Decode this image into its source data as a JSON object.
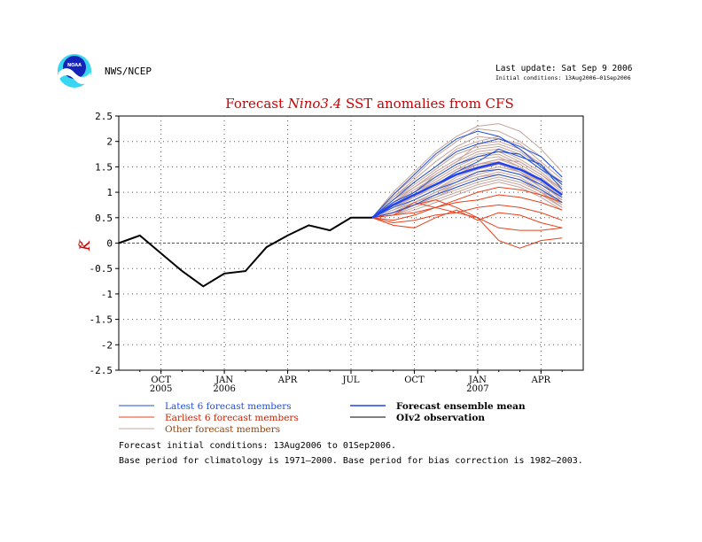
{
  "header": {
    "agency": "NWS/NCEP",
    "last_update": "Last update: Sat Sep  9 2006",
    "initial_conditions": "Initial conditions: 13Aug2006–01Sep2006",
    "logo_text": "NOAA"
  },
  "footer": {
    "line1": "Forecast initial conditions: 13Aug2006 to 01Sep2006.",
    "line2": "Base period for climatology is 1971—2000. Base period for bias correction is 1982—2003."
  },
  "colors": {
    "title": "#cc0000",
    "latest": "#1f4fd6",
    "earliest": "#e8401a",
    "other": "#c4a39a",
    "mean": "#2244ee",
    "obs": "#000000"
  },
  "chart_data": {
    "type": "line",
    "title_parts": [
      "Forecast ",
      "Nino3.4",
      " SST anomalies from CFS"
    ],
    "ylabel_unit": "K",
    "ylabel_degree": "o",
    "ylim": [
      -2.5,
      2.5
    ],
    "yticks": [
      {
        "v": 2.5,
        "label": "2.5"
      },
      {
        "v": 2,
        "label": "2"
      },
      {
        "v": 1.5,
        "label": "1.5"
      },
      {
        "v": 1,
        "label": "1"
      },
      {
        "v": 0.5,
        "label": "0.5"
      },
      {
        "v": 0,
        "label": "0"
      },
      {
        "v": -0.5,
        "label": "-0.5"
      },
      {
        "v": -1,
        "label": "-1"
      },
      {
        "v": -1.5,
        "label": "-1.5"
      },
      {
        "v": -2,
        "label": "-2"
      },
      {
        "v": -2.5,
        "label": "-2.5"
      }
    ],
    "x_range": [
      "2005-08",
      "2007-06"
    ],
    "xticks": [
      {
        "month": "2005-10",
        "label": "OCT",
        "year": "2005"
      },
      {
        "month": "2006-01",
        "label": "JAN",
        "year": "2006"
      },
      {
        "month": "2006-04",
        "label": "APR",
        "year": ""
      },
      {
        "month": "2006-07",
        "label": "JUL",
        "year": ""
      },
      {
        "month": "2006-10",
        "label": "OCT",
        "year": ""
      },
      {
        "month": "2007-01",
        "label": "JAN",
        "year": "2007"
      },
      {
        "month": "2007-04",
        "label": "APR",
        "year": ""
      }
    ],
    "grid": true,
    "legend": [
      {
        "key": "latest",
        "label": "Latest 6 forecast members"
      },
      {
        "key": "mean",
        "label": "Forecast ensemble mean"
      },
      {
        "key": "earliest",
        "label": "Earliest 6 forecast members"
      },
      {
        "key": "obs",
        "label": "OIv2 observation"
      },
      {
        "key": "other",
        "label": "Other forecast members"
      }
    ],
    "observation": {
      "x": [
        "2005-08",
        "2005-09",
        "2005-10",
        "2005-11",
        "2005-12",
        "2006-01",
        "2006-02",
        "2006-03",
        "2006-04",
        "2006-05",
        "2006-06",
        "2006-07",
        "2006-08"
      ],
      "y": [
        0.0,
        0.15,
        -0.2,
        -0.55,
        -0.85,
        -0.6,
        -0.55,
        -0.08,
        0.15,
        0.35,
        0.25,
        0.5,
        0.5
      ]
    },
    "forecast_x": [
      "2006-08",
      "2006-09",
      "2006-10",
      "2006-11",
      "2006-12",
      "2007-01",
      "2007-02",
      "2007-03",
      "2007-04",
      "2007-05"
    ],
    "ensemble_mean": [
      0.5,
      0.75,
      0.95,
      1.15,
      1.35,
      1.48,
      1.58,
      1.45,
      1.25,
      0.95
    ],
    "members": {
      "latest": [
        [
          0.5,
          0.95,
          1.35,
          1.75,
          2.05,
          2.2,
          2.1,
          1.85,
          1.5,
          1.15
        ],
        [
          0.5,
          0.85,
          1.2,
          1.5,
          1.8,
          1.95,
          2.05,
          1.9,
          1.7,
          1.3
        ],
        [
          0.5,
          0.8,
          1.0,
          1.3,
          1.55,
          1.7,
          1.8,
          1.75,
          1.45,
          1.2
        ],
        [
          0.5,
          0.75,
          0.95,
          1.15,
          1.4,
          1.6,
          1.85,
          1.7,
          1.55,
          1.05
        ],
        [
          0.5,
          0.7,
          0.85,
          1.05,
          1.2,
          1.4,
          1.45,
          1.35,
          1.15,
          0.9
        ],
        [
          0.5,
          0.6,
          0.75,
          0.95,
          1.1,
          1.25,
          1.35,
          1.25,
          1.05,
          0.8
        ]
      ],
      "earliest": [
        [
          0.5,
          0.55,
          0.6,
          0.7,
          0.85,
          1.0,
          1.1,
          1.05,
          0.95,
          0.8
        ],
        [
          0.5,
          0.45,
          0.55,
          0.7,
          0.8,
          0.85,
          0.95,
          0.9,
          0.8,
          0.65
        ],
        [
          0.5,
          0.4,
          0.45,
          0.55,
          0.6,
          0.7,
          0.75,
          0.7,
          0.6,
          0.45
        ],
        [
          0.5,
          0.35,
          0.3,
          0.5,
          0.65,
          0.45,
          0.6,
          0.55,
          0.4,
          0.3
        ],
        [
          0.5,
          0.55,
          0.8,
          0.7,
          0.6,
          0.5,
          0.3,
          0.25,
          0.25,
          0.3
        ],
        [
          0.5,
          0.6,
          0.75,
          0.85,
          0.7,
          0.5,
          0.05,
          -0.1,
          0.05,
          0.1
        ]
      ],
      "other": [
        [
          0.5,
          1.0,
          1.4,
          1.8,
          2.1,
          2.3,
          2.35,
          2.2,
          1.85,
          1.4
        ],
        [
          0.5,
          0.95,
          1.3,
          1.7,
          2.0,
          2.25,
          2.2,
          2.0,
          1.7,
          1.3
        ],
        [
          0.5,
          0.9,
          1.25,
          1.6,
          1.9,
          2.1,
          2.05,
          1.95,
          1.6,
          1.25
        ],
        [
          0.5,
          0.9,
          1.2,
          1.5,
          1.85,
          2.0,
          2.1,
          1.85,
          1.55,
          1.15
        ],
        [
          0.5,
          0.85,
          1.15,
          1.45,
          1.75,
          1.9,
          1.95,
          1.8,
          1.5,
          1.2
        ],
        [
          0.5,
          0.85,
          1.1,
          1.4,
          1.65,
          1.85,
          1.9,
          1.75,
          1.45,
          1.1
        ],
        [
          0.5,
          0.8,
          1.1,
          1.35,
          1.6,
          1.8,
          1.85,
          1.65,
          1.4,
          1.05
        ],
        [
          0.5,
          0.8,
          1.05,
          1.3,
          1.55,
          1.75,
          1.8,
          1.6,
          1.35,
          1.0
        ],
        [
          0.5,
          0.75,
          1.0,
          1.25,
          1.5,
          1.7,
          1.75,
          1.55,
          1.3,
          0.95
        ],
        [
          0.5,
          0.75,
          0.95,
          1.2,
          1.45,
          1.65,
          1.7,
          1.5,
          1.25,
          0.95
        ],
        [
          0.5,
          0.7,
          0.95,
          1.15,
          1.4,
          1.55,
          1.65,
          1.5,
          1.2,
          0.9
        ],
        [
          0.5,
          0.7,
          0.9,
          1.1,
          1.35,
          1.5,
          1.6,
          1.45,
          1.2,
          0.85
        ],
        [
          0.5,
          0.65,
          0.85,
          1.05,
          1.3,
          1.45,
          1.55,
          1.4,
          1.15,
          0.85
        ],
        [
          0.5,
          0.65,
          0.85,
          1.05,
          1.25,
          1.4,
          1.5,
          1.4,
          1.1,
          0.8
        ],
        [
          0.5,
          0.6,
          0.8,
          1.0,
          1.2,
          1.35,
          1.45,
          1.35,
          1.1,
          0.8
        ],
        [
          0.5,
          0.6,
          0.8,
          0.95,
          1.15,
          1.3,
          1.4,
          1.3,
          1.05,
          0.75
        ],
        [
          0.5,
          0.6,
          0.75,
          0.9,
          1.1,
          1.25,
          1.35,
          1.25,
          1.0,
          0.75
        ],
        [
          0.5,
          0.55,
          0.75,
          0.9,
          1.05,
          1.2,
          1.3,
          1.2,
          1.0,
          0.7
        ],
        [
          0.5,
          0.55,
          0.7,
          0.85,
          1.0,
          1.15,
          1.25,
          1.15,
          0.95,
          0.7
        ],
        [
          0.5,
          0.55,
          0.65,
          0.8,
          0.95,
          1.1,
          1.2,
          1.1,
          0.9,
          0.65
        ],
        [
          0.5,
          0.7,
          1.0,
          1.35,
          1.6,
          1.95,
          2.0,
          1.85,
          1.55,
          1.15
        ],
        [
          0.5,
          0.8,
          1.0,
          1.2,
          1.45,
          1.55,
          1.65,
          1.6,
          1.35,
          1.05
        ],
        [
          0.5,
          0.75,
          0.9,
          1.15,
          1.35,
          1.55,
          1.6,
          1.4,
          1.2,
          0.9
        ],
        [
          0.5,
          0.65,
          0.8,
          1.0,
          1.15,
          1.3,
          1.35,
          1.25,
          1.0,
          0.85
        ]
      ]
    }
  }
}
